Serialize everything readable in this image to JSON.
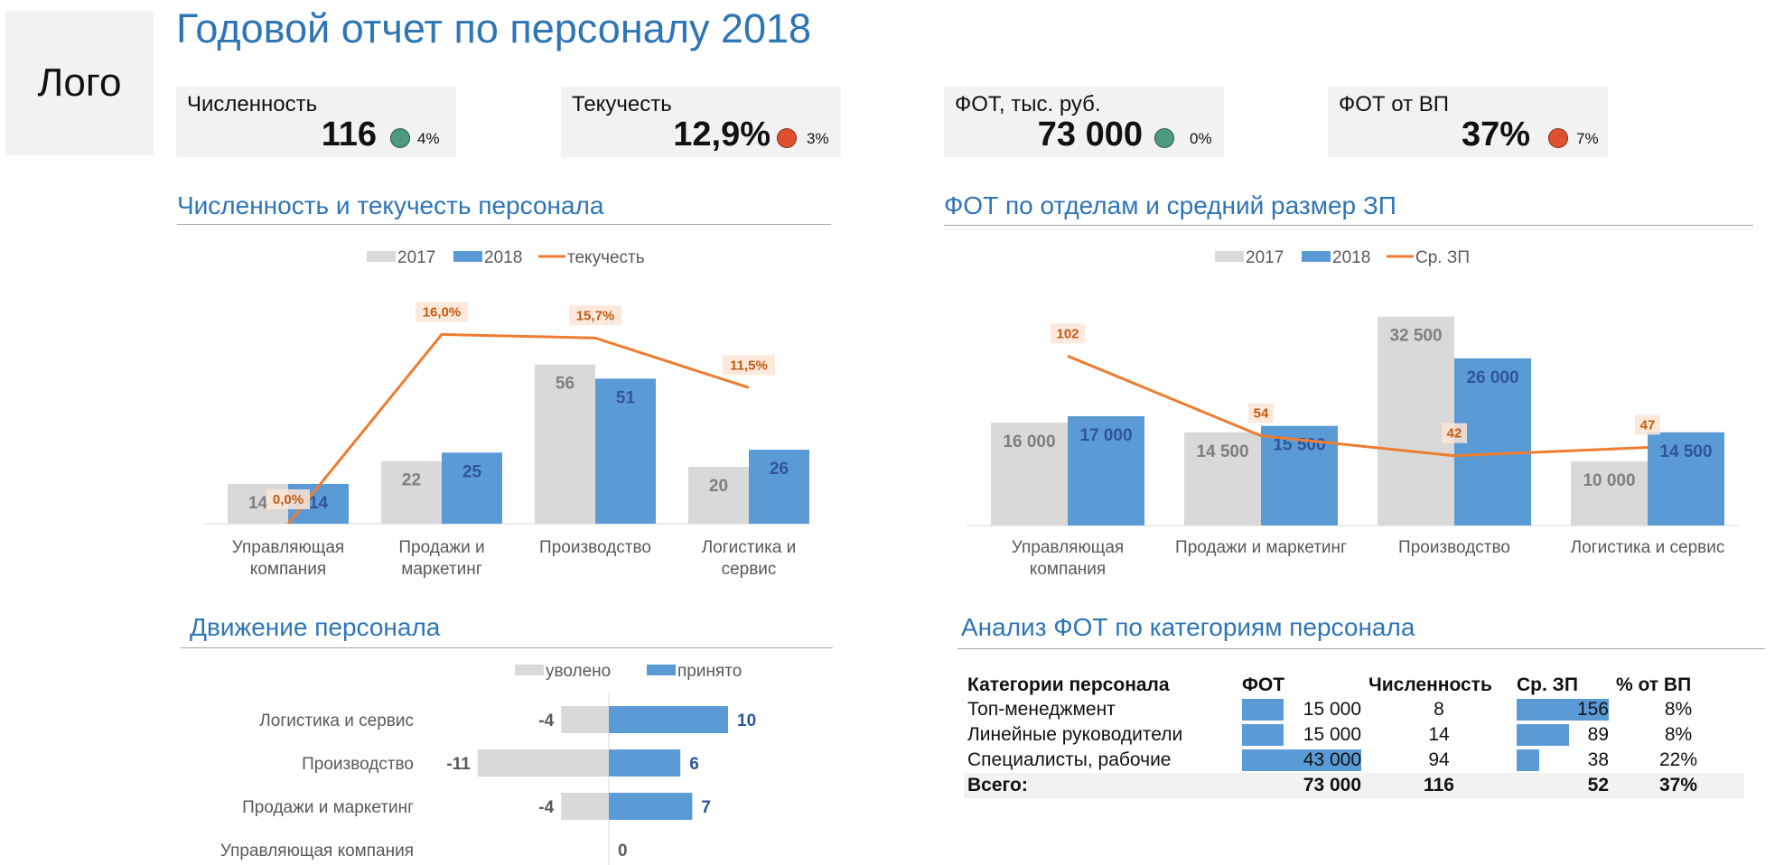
{
  "header": {
    "logo": "Лого",
    "title": "Годовой отчет по персоналу 2018"
  },
  "kpis": [
    {
      "label": "Численность",
      "value": "116",
      "change": "4%",
      "status_color": "#4e9a7e"
    },
    {
      "label": "Текучесть",
      "value": "12,9%",
      "change": "3%",
      "status_color": "#e0502c"
    },
    {
      "label": "ФОТ, тыс. руб.",
      "value": "73 000",
      "change": "0%",
      "status_color": "#4e9a7e"
    },
    {
      "label": "ФОТ от ВП",
      "value": "37%",
      "change": "7%",
      "status_color": "#e0502c"
    }
  ],
  "colors": {
    "accent": "#2e75b6",
    "bar2017": "#d9d9d9",
    "bar2018": "#5b9bd5",
    "line": "#ed7d31",
    "line_label": "#c55a11"
  },
  "sections": {
    "headcount": "Численность и текучесть персонала",
    "payroll": "ФОТ по отделам и средний размер ЗП",
    "movement": "Движение персонала",
    "analysis": "Анализ ФОТ по категориям персонала"
  },
  "chart_data": [
    {
      "type": "bar",
      "title": "Численность и текучесть персонала",
      "categories": [
        [
          "Управляющая",
          "компания"
        ],
        [
          "Продажи и",
          "маркетинг"
        ],
        [
          "Производство"
        ],
        [
          "Логистика и",
          "сервис"
        ]
      ],
      "series": [
        {
          "name": "2017",
          "values": [
            14,
            22,
            56,
            20
          ],
          "labels": [
            "14",
            "22",
            "56",
            "20"
          ]
        },
        {
          "name": "2018",
          "values": [
            14,
            25,
            51,
            26
          ],
          "labels": [
            "14",
            "25",
            "51",
            "26"
          ]
        }
      ],
      "line": {
        "name": "текучесть",
        "values": [
          0.0,
          16.0,
          15.7,
          11.5
        ],
        "labels": [
          "0,0%",
          "16,0%",
          "15,7%",
          "11,5%"
        ]
      },
      "legend": "top"
    },
    {
      "type": "bar",
      "title": "ФОТ по отделам и средний размер ЗП",
      "categories": [
        [
          "Управляющая",
          "компания"
        ],
        [
          "Продажи и маркетинг"
        ],
        [
          "Производство"
        ],
        [
          "Логистика и сервис"
        ]
      ],
      "series": [
        {
          "name": "2017",
          "values": [
            16000,
            14500,
            32500,
            10000
          ],
          "labels": [
            "16 000",
            "14 500",
            "32 500",
            "10 000"
          ]
        },
        {
          "name": "2018",
          "values": [
            17000,
            15500,
            26000,
            14500
          ],
          "labels": [
            "17 000",
            "15 500",
            "26 000",
            "14 500"
          ]
        }
      ],
      "line": {
        "name": "Ср. ЗП",
        "values": [
          102,
          54,
          42,
          47
        ],
        "labels": [
          "102",
          "54",
          "42",
          "47"
        ]
      },
      "legend": "top"
    },
    {
      "type": "bar",
      "title": "Движение персонала",
      "orientation": "horizontal",
      "categories": [
        "Логистика и сервис",
        "Производство",
        "Продажи и маркетинг",
        "Управляющая компания"
      ],
      "series": [
        {
          "name": "уволено",
          "values": [
            -4,
            -11,
            -4,
            0
          ],
          "labels": [
            "-4",
            "-11",
            "-4",
            ""
          ]
        },
        {
          "name": "принято",
          "values": [
            10,
            6,
            7,
            0
          ],
          "labels": [
            "10",
            "6",
            "7",
            "0"
          ]
        }
      ],
      "legend": "top"
    },
    {
      "type": "table",
      "title": "Анализ ФОТ по категориям персонала",
      "columns": [
        "Категории персонала",
        "ФОТ",
        "Численность",
        "Ср. ЗП",
        "% от ВП"
      ],
      "rows": [
        [
          "Топ-менеджмент",
          "15 000",
          "8",
          "156",
          "8%"
        ],
        [
          "Линейные руководители",
          "15 000",
          "14",
          "89",
          "8%"
        ],
        [
          "Специалисты, рабочие",
          "43 000",
          "94",
          "38",
          "22%"
        ]
      ],
      "bar_values": {
        "fot": [
          15000,
          15000,
          43000
        ],
        "avg": [
          156,
          89,
          38
        ]
      },
      "total": [
        "Всего:",
        "73 000",
        "116",
        "52",
        "37%"
      ]
    }
  ]
}
